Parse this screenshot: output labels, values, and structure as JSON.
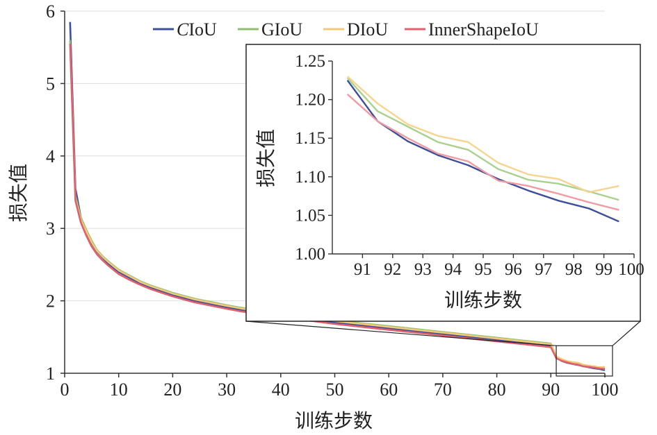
{
  "chart_data": [
    {
      "type": "line",
      "xlabel": "训练步数",
      "ylabel": "损失值",
      "xlim": [
        0,
        100
      ],
      "ylim": [
        1,
        6
      ],
      "xticks": [
        0,
        10,
        20,
        30,
        40,
        50,
        60,
        70,
        80,
        90,
        100
      ],
      "yticks": [
        1,
        2,
        3,
        4,
        5,
        6
      ],
      "grid": "horizontal",
      "legend": {
        "position": "top",
        "entries": [
          "CIoU",
          "GIoU",
          "DIoU",
          "InnerShapeIoU"
        ]
      },
      "x": [
        1,
        2,
        3,
        4,
        5,
        6,
        7,
        8,
        9,
        10,
        12,
        14,
        16,
        18,
        20,
        22,
        24,
        26,
        28,
        30,
        33,
        36,
        40,
        45,
        50,
        55,
        60,
        65,
        70,
        75,
        80,
        85,
        90,
        91,
        92,
        93,
        94,
        95,
        96,
        97,
        98,
        99,
        100
      ],
      "series": [
        {
          "name": "CIoU",
          "color": "#3c4f98",
          "values": [
            5.85,
            3.55,
            3.15,
            2.95,
            2.8,
            2.68,
            2.6,
            2.52,
            2.46,
            2.4,
            2.32,
            2.24,
            2.18,
            2.13,
            2.08,
            2.04,
            2.0,
            1.97,
            1.94,
            1.91,
            1.87,
            1.84,
            1.8,
            1.75,
            1.7,
            1.66,
            1.62,
            1.58,
            1.54,
            1.5,
            1.46,
            1.42,
            1.38,
            1.225,
            1.17,
            1.145,
            1.128,
            1.115,
            1.097,
            1.082,
            1.069,
            1.059,
            1.042
          ]
        },
        {
          "name": "GIoU",
          "color": "#8fbf6e",
          "values": [
            5.6,
            3.45,
            3.15,
            2.98,
            2.83,
            2.7,
            2.62,
            2.55,
            2.49,
            2.43,
            2.35,
            2.27,
            2.21,
            2.16,
            2.11,
            2.07,
            2.03,
            2.0,
            1.97,
            1.94,
            1.9,
            1.87,
            1.83,
            1.78,
            1.73,
            1.69,
            1.65,
            1.61,
            1.57,
            1.53,
            1.49,
            1.45,
            1.41,
            1.228,
            1.185,
            1.165,
            1.145,
            1.135,
            1.11,
            1.096,
            1.091,
            1.081,
            1.07
          ]
        },
        {
          "name": "DIoU",
          "color": "#f2c879",
          "values": [
            5.55,
            3.4,
            3.12,
            2.96,
            2.81,
            2.69,
            2.61,
            2.54,
            2.48,
            2.42,
            2.34,
            2.26,
            2.2,
            2.15,
            2.1,
            2.06,
            2.02,
            1.99,
            1.96,
            1.93,
            1.89,
            1.86,
            1.82,
            1.77,
            1.72,
            1.68,
            1.64,
            1.6,
            1.56,
            1.52,
            1.48,
            1.44,
            1.4,
            1.23,
            1.195,
            1.168,
            1.153,
            1.145,
            1.118,
            1.103,
            1.097,
            1.08,
            1.088
          ]
        },
        {
          "name": "InnerShapeIoU",
          "color": "#e0606e",
          "values": [
            5.55,
            3.38,
            3.08,
            2.9,
            2.75,
            2.64,
            2.56,
            2.49,
            2.43,
            2.37,
            2.29,
            2.22,
            2.16,
            2.11,
            2.06,
            2.02,
            1.98,
            1.95,
            1.92,
            1.89,
            1.85,
            1.82,
            1.78,
            1.73,
            1.68,
            1.64,
            1.6,
            1.56,
            1.52,
            1.48,
            1.44,
            1.4,
            1.36,
            1.207,
            1.172,
            1.15,
            1.13,
            1.12,
            1.095,
            1.088,
            1.078,
            1.067,
            1.057
          ]
        }
      ]
    },
    {
      "type": "line",
      "xlabel": "训练步数",
      "ylabel": "损失值",
      "xlim": [
        90,
        100
      ],
      "ylim": [
        1.0,
        1.25
      ],
      "xticks": [
        91,
        92,
        93,
        94,
        95,
        96,
        97,
        98,
        99,
        100
      ],
      "yticks": [
        "1.00",
        "1.05",
        "1.10",
        "1.15",
        "1.20",
        "1.25"
      ],
      "grid": "none",
      "x": [
        90.5,
        91.5,
        92.5,
        93.5,
        94.5,
        95.5,
        96.5,
        97.5,
        98.5,
        99.5
      ],
      "series": [
        {
          "name": "CIoU",
          "color": "#3c4f98",
          "values": [
            1.225,
            1.172,
            1.146,
            1.128,
            1.115,
            1.097,
            1.082,
            1.069,
            1.059,
            1.042
          ]
        },
        {
          "name": "GIoU",
          "color": "#a9d18e",
          "values": [
            1.228,
            1.185,
            1.165,
            1.145,
            1.135,
            1.11,
            1.096,
            1.091,
            1.081,
            1.07
          ]
        },
        {
          "name": "DIoU",
          "color": "#f6d38e",
          "values": [
            1.23,
            1.195,
            1.168,
            1.153,
            1.145,
            1.118,
            1.103,
            1.097,
            1.08,
            1.088
          ]
        },
        {
          "name": "InnerShapeIoU",
          "color": "#f09aa2",
          "values": [
            1.207,
            1.172,
            1.15,
            1.13,
            1.12,
            1.095,
            1.088,
            1.078,
            1.067,
            1.057
          ]
        }
      ]
    }
  ]
}
